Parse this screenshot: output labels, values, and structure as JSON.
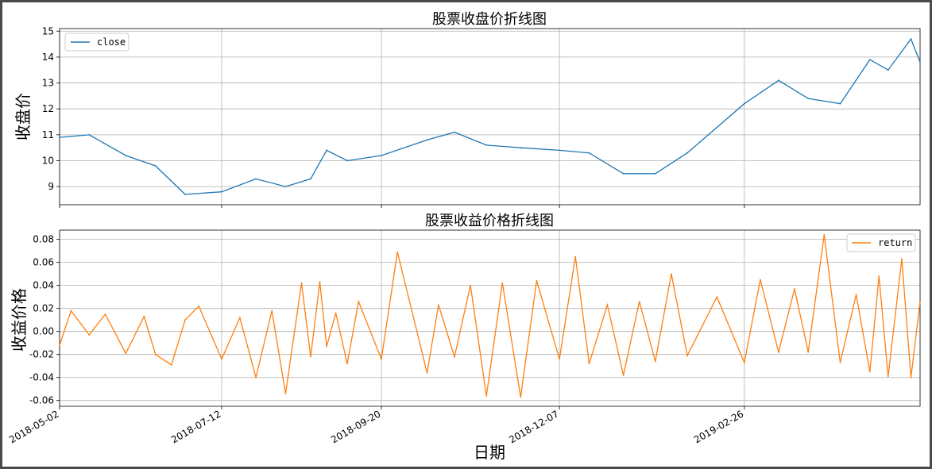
{
  "chart_data": [
    {
      "type": "line",
      "title": "股票收盘价折线图",
      "ylabel": "收盘价",
      "xlabel": "",
      "ylim": [
        8.3,
        15.1
      ],
      "yticks": [
        9,
        10,
        11,
        12,
        13,
        14,
        15
      ],
      "xlim": [
        "2018-05-02",
        "2019-05-14"
      ],
      "grid": true,
      "legend": "upper-left",
      "series": [
        {
          "name": "close",
          "color": "#1f77b4",
          "x": [
            "2018-05-02",
            "2018-05-15",
            "2018-05-31",
            "2018-06-13",
            "2018-06-26",
            "2018-07-12",
            "2018-07-27",
            "2018-08-09",
            "2018-08-20",
            "2018-08-27",
            "2018-09-05",
            "2018-09-20",
            "2018-10-10",
            "2018-10-22",
            "2018-11-05",
            "2018-11-20",
            "2018-12-07",
            "2018-12-20",
            "2019-01-04",
            "2019-01-18",
            "2019-02-01",
            "2019-02-26",
            "2019-03-13",
            "2019-03-26",
            "2019-04-09",
            "2019-04-22",
            "2019-04-30",
            "2019-05-10",
            "2019-05-14"
          ],
          "y": [
            10.9,
            11.0,
            10.2,
            9.8,
            8.7,
            8.8,
            9.3,
            9.0,
            9.3,
            10.4,
            10.0,
            10.2,
            10.8,
            11.1,
            10.6,
            10.5,
            10.4,
            10.3,
            9.5,
            9.5,
            10.3,
            12.2,
            13.1,
            12.4,
            12.2,
            13.9,
            13.5,
            14.7,
            13.8
          ]
        }
      ]
    },
    {
      "type": "line",
      "title": "股票收益价格折线图",
      "ylabel": "收益价格",
      "xlabel": "日期",
      "ylim": [
        -0.065,
        0.088
      ],
      "yticks": [
        -0.06,
        -0.04,
        -0.02,
        0.0,
        0.02,
        0.04,
        0.06,
        0.08
      ],
      "ytick_labels": [
        "-0.06",
        "-0.04",
        "-0.02",
        "0.00",
        "0.02",
        "0.04",
        "0.06",
        "0.08"
      ],
      "xlim": [
        "2018-05-02",
        "2019-05-14"
      ],
      "xticks": [
        "2018-05-02",
        "2018-07-12",
        "2018-09-20",
        "2018-12-07",
        "2019-02-26"
      ],
      "grid": true,
      "legend": "upper-right",
      "series": [
        {
          "name": "return",
          "color": "#ff7f0e",
          "x": [
            "2018-05-02",
            "2018-05-07",
            "2018-05-15",
            "2018-05-22",
            "2018-05-31",
            "2018-06-08",
            "2018-06-13",
            "2018-06-20",
            "2018-06-26",
            "2018-07-02",
            "2018-07-12",
            "2018-07-20",
            "2018-07-27",
            "2018-08-03",
            "2018-08-09",
            "2018-08-16",
            "2018-08-20",
            "2018-08-24",
            "2018-08-27",
            "2018-08-31",
            "2018-09-05",
            "2018-09-10",
            "2018-09-20",
            "2018-09-27",
            "2018-10-10",
            "2018-10-15",
            "2018-10-22",
            "2018-10-29",
            "2018-11-05",
            "2018-11-12",
            "2018-11-20",
            "2018-11-27",
            "2018-12-07",
            "2018-12-14",
            "2018-12-20",
            "2018-12-28",
            "2019-01-04",
            "2019-01-11",
            "2019-01-18",
            "2019-01-25",
            "2019-02-01",
            "2019-02-14",
            "2019-02-26",
            "2019-03-05",
            "2019-03-13",
            "2019-03-20",
            "2019-03-26",
            "2019-04-02",
            "2019-04-09",
            "2019-04-16",
            "2019-04-22",
            "2019-04-26",
            "2019-04-30",
            "2019-05-06",
            "2019-05-10",
            "2019-05-14"
          ],
          "y": [
            -0.012,
            0.018,
            -0.003,
            0.015,
            -0.019,
            0.013,
            -0.02,
            -0.029,
            0.01,
            0.022,
            -0.024,
            0.012,
            -0.04,
            0.018,
            -0.054,
            0.042,
            -0.022,
            0.043,
            -0.013,
            0.016,
            -0.028,
            0.026,
            -0.024,
            0.069,
            -0.036,
            0.023,
            -0.022,
            0.04,
            -0.056,
            0.042,
            -0.057,
            0.044,
            -0.024,
            0.065,
            -0.028,
            0.023,
            -0.038,
            0.026,
            -0.026,
            0.05,
            -0.021,
            0.03,
            -0.027,
            0.045,
            -0.018,
            0.037,
            -0.018,
            0.084,
            -0.027,
            0.032,
            -0.035,
            0.048,
            -0.039,
            0.063,
            -0.04,
            0.026
          ]
        }
      ]
    }
  ]
}
